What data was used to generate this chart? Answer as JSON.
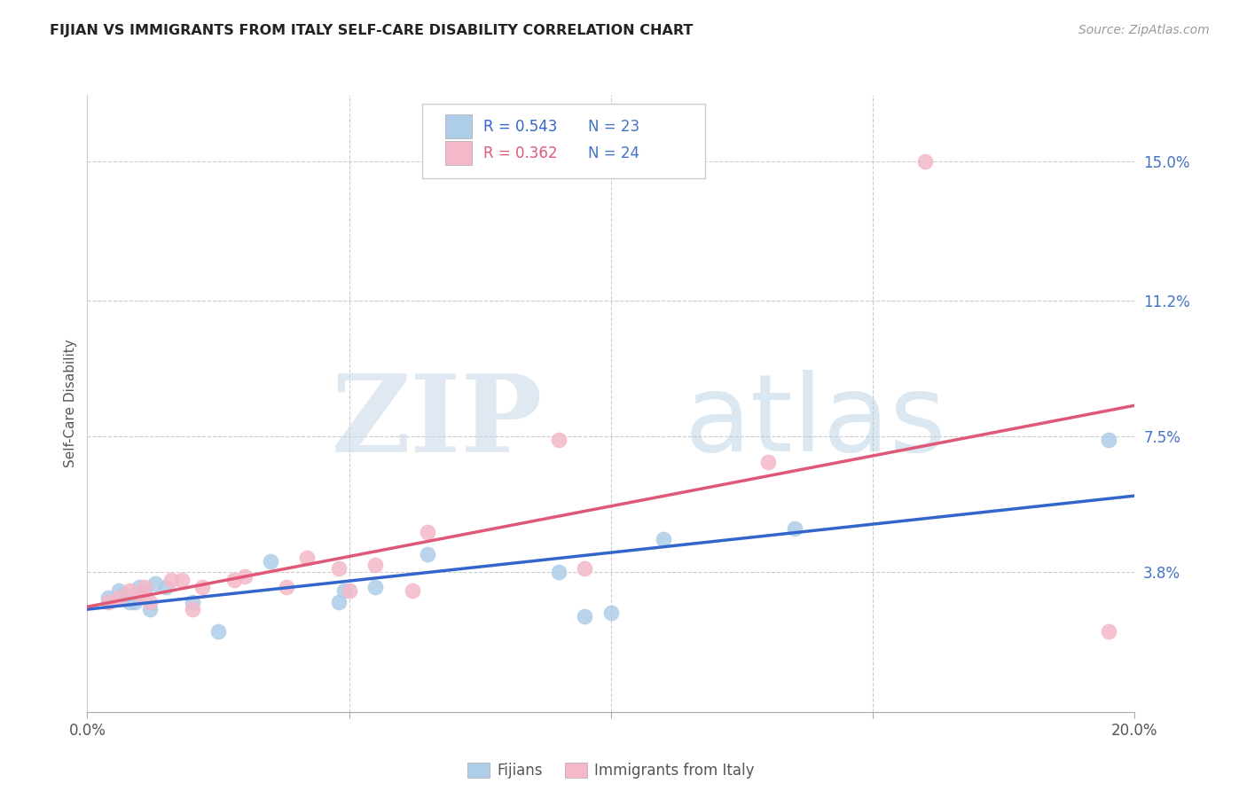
{
  "title": "FIJIAN VS IMMIGRANTS FROM ITALY SELF-CARE DISABILITY CORRELATION CHART",
  "source": "Source: ZipAtlas.com",
  "ylabel": "Self-Care Disability",
  "xlim": [
    0.0,
    0.2
  ],
  "ylim": [
    0.0,
    0.168
  ],
  "xticks": [
    0.0,
    0.05,
    0.1,
    0.15,
    0.2
  ],
  "xtick_labels": [
    "0.0%",
    "",
    "",
    "",
    "20.0%"
  ],
  "ytick_right": [
    0.038,
    0.075,
    0.112,
    0.15
  ],
  "ytick_right_labels": [
    "3.8%",
    "7.5%",
    "11.2%",
    "15.0%"
  ],
  "fijian_R": 0.543,
  "fijian_N": 23,
  "italy_R": 0.362,
  "italy_N": 24,
  "fijian_color": "#aecde8",
  "fijian_line_color": "#3366cc",
  "italy_color": "#f4b8c8",
  "italy_line_color": "#e05878",
  "fijian_x": [
    0.004,
    0.006,
    0.007,
    0.008,
    0.009,
    0.01,
    0.011,
    0.012,
    0.013,
    0.015,
    0.02,
    0.025,
    0.035,
    0.048,
    0.049,
    0.055,
    0.065,
    0.09,
    0.095,
    0.1,
    0.11,
    0.135,
    0.195
  ],
  "fijian_y": [
    0.031,
    0.033,
    0.032,
    0.03,
    0.03,
    0.034,
    0.033,
    0.028,
    0.035,
    0.034,
    0.03,
    0.022,
    0.041,
    0.03,
    0.033,
    0.034,
    0.043,
    0.038,
    0.026,
    0.027,
    0.047,
    0.05,
    0.074
  ],
  "italy_x": [
    0.004,
    0.006,
    0.008,
    0.01,
    0.011,
    0.012,
    0.016,
    0.018,
    0.02,
    0.022,
    0.028,
    0.03,
    0.038,
    0.042,
    0.048,
    0.05,
    0.055,
    0.062,
    0.065,
    0.09,
    0.095,
    0.13,
    0.16,
    0.195
  ],
  "italy_y": [
    0.03,
    0.031,
    0.033,
    0.032,
    0.034,
    0.03,
    0.036,
    0.036,
    0.028,
    0.034,
    0.036,
    0.037,
    0.034,
    0.042,
    0.039,
    0.033,
    0.04,
    0.033,
    0.049,
    0.074,
    0.039,
    0.068,
    0.15,
    0.022
  ],
  "background_color": "#ffffff",
  "grid_color": "#cccccc",
  "label_color": "#555555",
  "right_axis_color": "#4472c4"
}
